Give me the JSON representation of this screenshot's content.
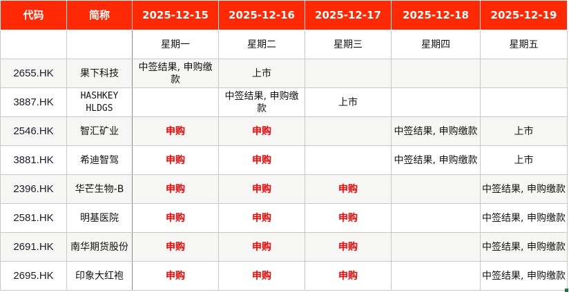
{
  "header": {
    "code": "代码",
    "name": "简称",
    "dates": [
      "2025-12-15",
      "2025-12-16",
      "2025-12-17",
      "2025-12-18",
      "2025-12-19"
    ]
  },
  "weekdays": [
    "星期一",
    "星期二",
    "星期三",
    "星期四",
    "星期五"
  ],
  "rows": [
    {
      "code": "2655.HK",
      "name": "果下科技",
      "cells": [
        "中签结果, 申购缴款",
        "上市",
        "",
        "",
        ""
      ]
    },
    {
      "code": "3887.HK",
      "name": "HASHKEY HLDGS",
      "cells": [
        "",
        "中签结果, 申购缴款",
        "上市",
        "",
        ""
      ]
    },
    {
      "code": "2546.HK",
      "name": "智汇矿业",
      "cells": [
        "申购",
        "申购",
        "",
        "中签结果, 申购缴款",
        "上市"
      ]
    },
    {
      "code": "3881.HK",
      "name": "希迪智驾",
      "cells": [
        "申购",
        "申购",
        "",
        "中签结果, 申购缴款",
        "上市"
      ]
    },
    {
      "code": "2396.HK",
      "name": "华芒生物-B",
      "cells": [
        "申购",
        "申购",
        "申购",
        "",
        "中签结果, 申购缴款"
      ]
    },
    {
      "code": "2581.HK",
      "name": "明基医院",
      "cells": [
        "申购",
        "申购",
        "申购",
        "",
        "中签结果, 申购缴款"
      ]
    },
    {
      "code": "2691.HK",
      "name": "南华期货股份",
      "cells": [
        "申购",
        "申购",
        "申购",
        "",
        "中签结果, 申购缴款"
      ]
    },
    {
      "code": "2695.HK",
      "name": "印象大红袍",
      "cells": [
        "申购",
        "申购",
        "申购",
        "",
        "中签结果, 申购缴款"
      ]
    }
  ],
  "colors": {
    "header_bg": "#ff2a05",
    "subscribe_text": "#ff0000",
    "alt_row_bg": "#f6f6f4"
  }
}
